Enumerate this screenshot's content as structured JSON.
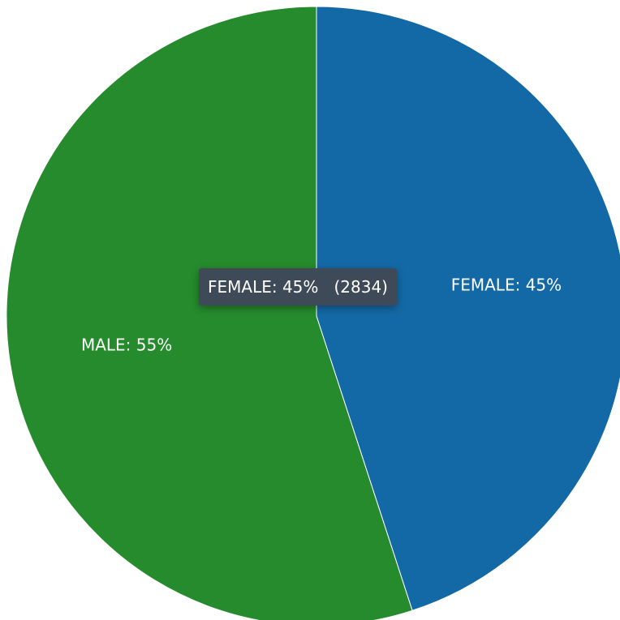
{
  "chart_data": {
    "type": "pie",
    "title": "",
    "slices": [
      {
        "label": "FEMALE",
        "percent": 45,
        "display": "FEMALE: 45%",
        "color": "#1369a6"
      },
      {
        "label": "MALE",
        "percent": 55,
        "display": "MALE: 55%",
        "color": "#258b2d"
      }
    ],
    "start_angle_deg": 0,
    "direction": "clockwise"
  },
  "tooltip": {
    "label": "FEMALE: 45%",
    "count": "(2834)",
    "background": "#3f4a59"
  }
}
